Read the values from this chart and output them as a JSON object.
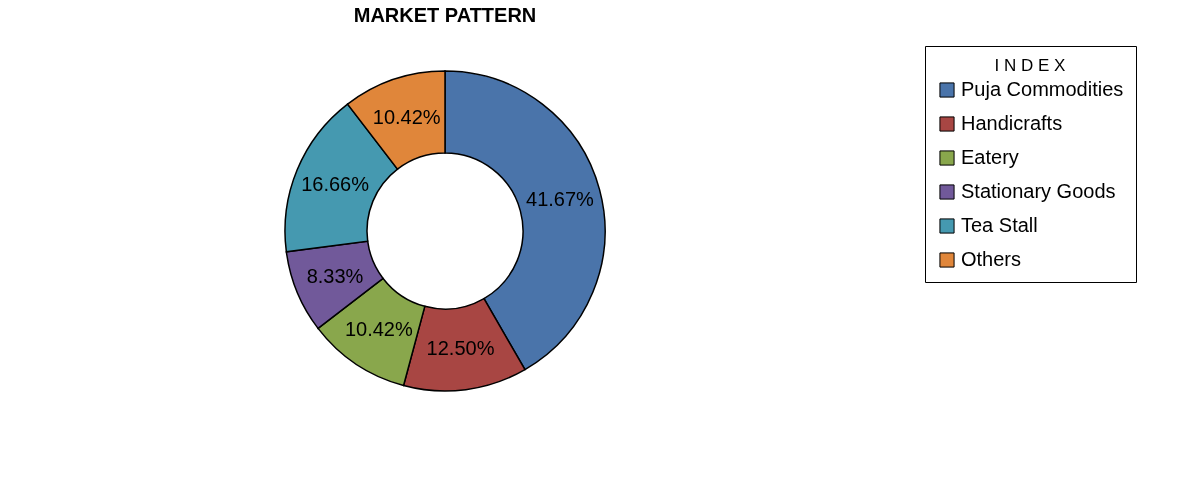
{
  "chart_data": {
    "type": "donut",
    "title": "MARKET PATTERN",
    "legend_title": "I N D E X",
    "categories": [
      "Puja Commodities",
      "Handicrafts",
      "Eatery",
      "Stationary Goods",
      "Tea Stall",
      "Others"
    ],
    "values": [
      41.67,
      12.5,
      10.42,
      8.33,
      16.66,
      10.42
    ],
    "colors": [
      "#4a74aa",
      "#a84643",
      "#89a74c",
      "#71599a",
      "#4599b0",
      "#e0863a"
    ],
    "value_labels": [
      "41.67%",
      "12.50%",
      "10.42%",
      "8.33%",
      "16.66%",
      "10.42%"
    ],
    "legend": "right"
  }
}
